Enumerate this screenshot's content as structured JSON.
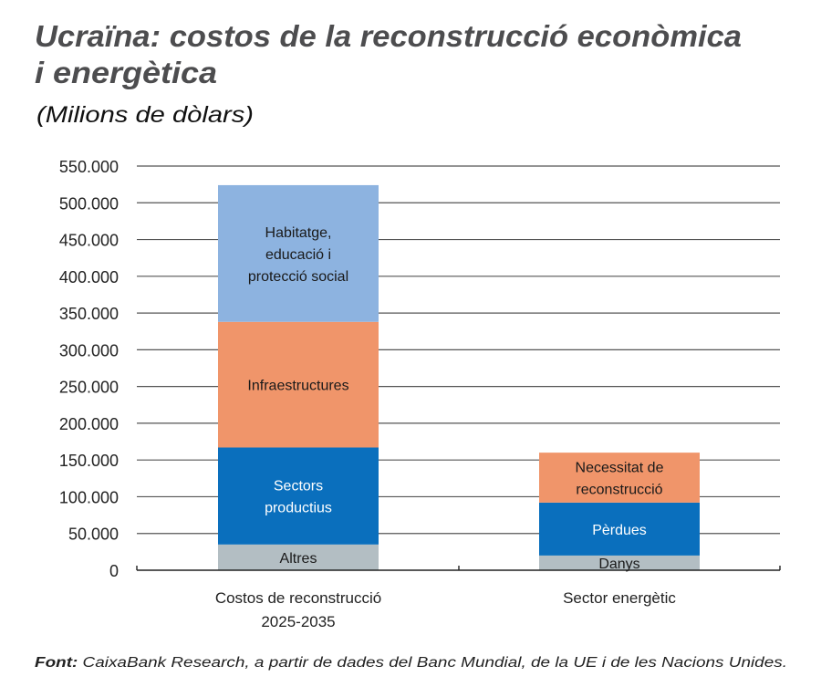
{
  "chart_data": {
    "type": "bar",
    "stacked": true,
    "title": [
      "Ucraïna: costos de la reconstrucció econòmica",
      "i energètica"
    ],
    "subtitle": "(Milions de dòlars)",
    "xlabel": "",
    "ylabel": "",
    "ylim": [
      0,
      550000
    ],
    "yticks": [
      0,
      50000,
      100000,
      150000,
      200000,
      250000,
      300000,
      350000,
      400000,
      450000,
      500000,
      550000
    ],
    "ytick_labels": [
      "0",
      "50.000",
      "100.000",
      "150.000",
      "200.000",
      "250.000",
      "300.000",
      "350.000",
      "400.000",
      "450.000",
      "500.000",
      "550.000"
    ],
    "grid": true,
    "categories": [
      {
        "lines": [
          "Costos de reconstrucció",
          "2025-2035"
        ]
      },
      {
        "lines": [
          "Sector energètic"
        ]
      }
    ],
    "bars": [
      {
        "segments": [
          {
            "label": [
              "Altres"
            ],
            "value": 35000,
            "color": "#b3bec3",
            "text_color": "#1a1a1a"
          },
          {
            "label": [
              "Sectors",
              "productius"
            ],
            "value": 132000,
            "color": "#0a6fbd",
            "text_color": "#ffffff"
          },
          {
            "label": [
              "Infraestructures"
            ],
            "value": 171000,
            "color": "#f0956a",
            "text_color": "#1a1a1a"
          },
          {
            "label": [
              "Habitatge,",
              "educació i",
              "protecció social"
            ],
            "value": 186000,
            "color": "#8db3e0",
            "text_color": "#1a1a1a"
          }
        ]
      },
      {
        "segments": [
          {
            "label": [
              "Danys"
            ],
            "value": 20000,
            "color": "#b3bec3",
            "text_color": "#1a1a1a"
          },
          {
            "label": [
              "Pèrdues"
            ],
            "value": 72000,
            "color": "#0a6fbd",
            "text_color": "#ffffff"
          },
          {
            "label": [
              "Necessitat de",
              "reconstrucció"
            ],
            "value": 68000,
            "color": "#f0956a",
            "text_color": "#1a1a1a"
          }
        ]
      }
    ]
  },
  "source": {
    "label": "Font:",
    "text": " CaixaBank Research, a partir de dades del Banc Mundial, de la UE i de les Nacions Unides."
  }
}
